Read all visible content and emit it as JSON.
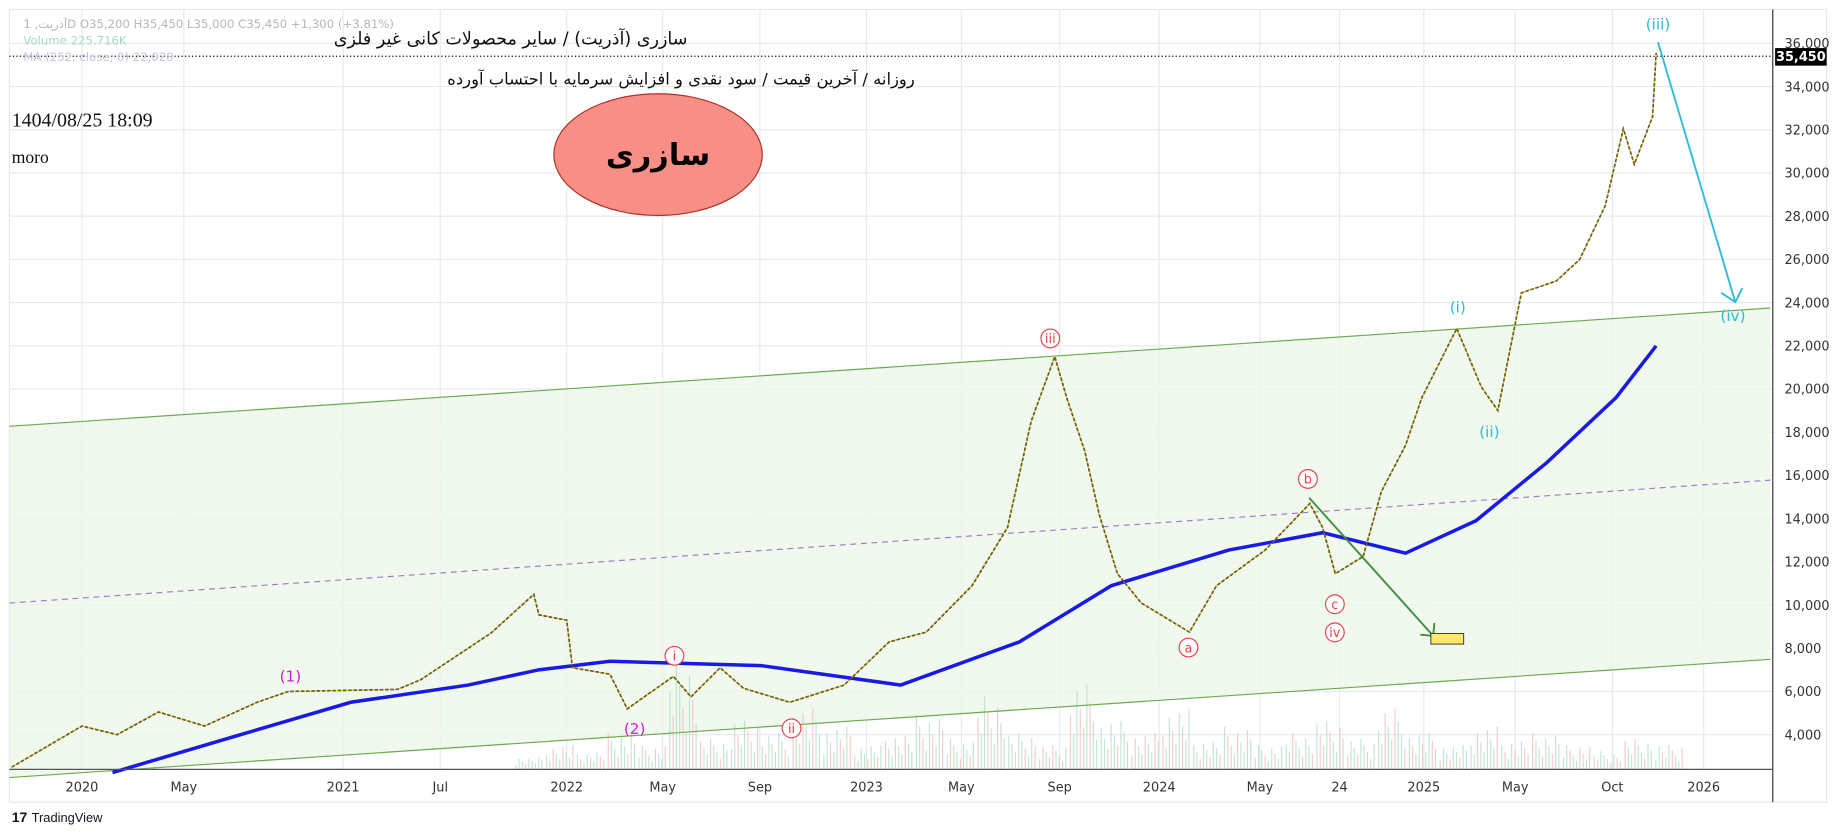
{
  "header": {
    "legend_ohlc": "آذریت, 1D  O35,200  H35,450  L35,000  C35,450  +1,300 (+3.81%)",
    "legend_volume": "Volume 225.716K",
    "legend_ma": "MA (252, close, 0)  22,028",
    "title_line1": "سازری (آذریت) / سایر محصولات کانی غیر فلزی",
    "title_line2": "روزانه / آخرین قیمت / سود نقدی و افزایش سرمایه با احتساب آورده",
    "datetime": "1404/08/25 18:09",
    "author": "moro",
    "badge_text": "سازری"
  },
  "footer": {
    "brand": "TradingView"
  },
  "colors": {
    "ma": "#1a1ae6",
    "channel": "#6aab4f",
    "channel_fill": "#eef6ea",
    "mid": "#9b7fc4",
    "wave_red": "#e8434b",
    "wave_magenta": "#d21fd2",
    "wave_cyan": "#2fbcd8",
    "badge_fill": "#f88f86",
    "target_box": "#ffe866"
  },
  "chart_data": {
    "type": "line",
    "title": "سازری (آذریت)",
    "xlabel": "",
    "ylabel": "",
    "ylim": [
      2000,
      37500
    ],
    "y_ticks": [
      "36,000",
      "34,000",
      "32,000",
      "30,000",
      "28,000",
      "26,000",
      "24,000",
      "22,000",
      "20,000",
      "18,000",
      "16,000",
      "14,000",
      "12,000",
      "10,000",
      "8,000",
      "6,000",
      "4,000"
    ],
    "x_ticks": [
      "2020",
      "May",
      "2021",
      "Jul",
      "2022",
      "May",
      "Sep",
      "2023",
      "May",
      "Sep",
      "2024",
      "May",
      "24",
      "2025",
      "May",
      "Oct",
      "2026"
    ],
    "last_price": "35,450",
    "series": [
      {
        "name": "Price",
        "points": [
          [
            2019.77,
            2500
          ],
          [
            2020.0,
            4400
          ],
          [
            2020.115,
            4000
          ],
          [
            2020.25,
            5050
          ],
          [
            2020.42,
            4400
          ],
          [
            2020.64,
            5500
          ],
          [
            2020.77,
            6000
          ],
          [
            2021.28,
            6100
          ],
          [
            2021.4,
            6550
          ],
          [
            2021.7,
            8700
          ],
          [
            2021.87,
            10500
          ],
          [
            2021.89,
            9550
          ],
          [
            2022.0,
            9300
          ],
          [
            2022.02,
            7100
          ],
          [
            2022.15,
            6800
          ],
          [
            2022.21,
            5200
          ],
          [
            2022.37,
            6700
          ],
          [
            2022.43,
            5750
          ],
          [
            2022.53,
            7100
          ],
          [
            2022.61,
            6150
          ],
          [
            2022.76,
            5500
          ],
          [
            2022.93,
            6300
          ],
          [
            2023.08,
            8300
          ],
          [
            2023.21,
            8750
          ],
          [
            2023.37,
            10900
          ],
          [
            2023.49,
            13600
          ],
          [
            2023.57,
            18500
          ],
          [
            2023.65,
            21500
          ],
          [
            2023.69,
            19600
          ],
          [
            2023.75,
            17150
          ],
          [
            2023.8,
            14150
          ],
          [
            2023.86,
            11450
          ],
          [
            2023.94,
            10100
          ],
          [
            2024.1,
            8750
          ],
          [
            2024.19,
            10900
          ],
          [
            2024.35,
            12550
          ],
          [
            2024.49,
            14700
          ],
          [
            2024.53,
            13600
          ],
          [
            2024.57,
            11450
          ],
          [
            2024.7,
            12250
          ],
          [
            2024.79,
            15250
          ],
          [
            2024.91,
            17400
          ],
          [
            2024.99,
            19600
          ],
          [
            2025.12,
            22800
          ],
          [
            2025.21,
            20100
          ],
          [
            2025.27,
            19000
          ],
          [
            2025.36,
            24450
          ],
          [
            2025.51,
            25000
          ],
          [
            2025.61,
            26000
          ],
          [
            2025.72,
            28500
          ],
          [
            2025.78,
            32050
          ],
          [
            2025.81,
            30400
          ],
          [
            2025.86,
            32600
          ],
          [
            2025.87,
            35550
          ]
        ]
      },
      {
        "name": "MA (252, close, 0)",
        "points": [
          [
            2020.1,
            2250
          ],
          [
            2020.54,
            3900
          ],
          [
            2021.04,
            5500
          ],
          [
            2021.61,
            6300
          ],
          [
            2021.89,
            7000
          ],
          [
            2022.15,
            7400
          ],
          [
            2022.67,
            7200
          ],
          [
            2023.12,
            6300
          ],
          [
            2023.53,
            8300
          ],
          [
            2023.84,
            10900
          ],
          [
            2024.23,
            12550
          ],
          [
            2024.53,
            13350
          ],
          [
            2024.91,
            12400
          ],
          [
            2025.19,
            13900
          ],
          [
            2025.47,
            16600
          ],
          [
            2025.76,
            19600
          ],
          [
            2025.87,
            22000
          ]
        ]
      }
    ],
    "volume_relative": [
      0.1,
      0.2,
      0.15,
      0.3,
      0.2,
      0.9,
      0.25,
      0.4,
      0.3,
      0.5,
      0.35,
      0.2,
      0.3,
      0.45,
      0.25,
      0.6,
      0.3,
      0.2,
      0.7,
      0.4,
      0.3,
      0.5,
      0.25,
      0.35,
      0.2,
      0.3,
      0.4,
      0.25,
      0.5,
      0.3,
      0.2,
      0.35,
      0.25,
      0.3,
      0.2,
      0.15,
      0.25,
      0.2
    ],
    "wave_labels": [
      {
        "text": "(1)",
        "color": "magenta"
      },
      {
        "text": "(2)",
        "color": "magenta"
      },
      {
        "text": "i",
        "color": "red"
      },
      {
        "text": "ii",
        "color": "red"
      },
      {
        "text": "iii",
        "color": "red"
      },
      {
        "text": "a",
        "color": "red"
      },
      {
        "text": "b",
        "color": "red"
      },
      {
        "text": "c",
        "color": "red"
      },
      {
        "text": "iv",
        "color": "red"
      },
      {
        "text": "(i)",
        "color": "cyan"
      },
      {
        "text": "(ii)",
        "color": "cyan"
      },
      {
        "text": "(iii)",
        "color": "cyan"
      },
      {
        "text": "(iv)",
        "color": "cyan"
      }
    ]
  }
}
